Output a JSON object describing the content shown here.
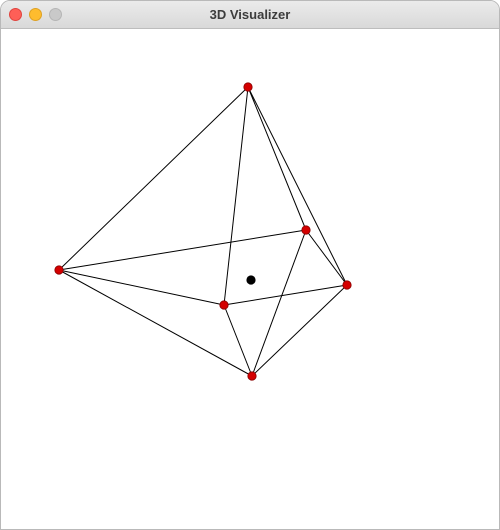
{
  "window": {
    "title": "3D Visualizer"
  },
  "colors": {
    "vertex": "#d40000",
    "center": "#000000",
    "edge": "#000000"
  },
  "scene": {
    "description_shape": "octahedron-wireframe",
    "vertex_count": 6,
    "has_center_marker": true
  }
}
